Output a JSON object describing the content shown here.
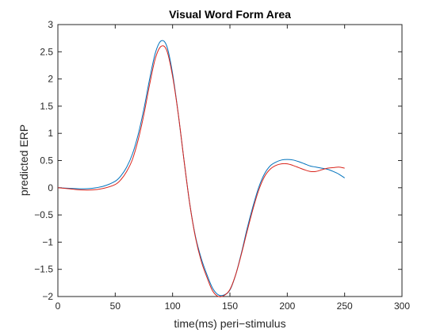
{
  "chart_data": {
    "type": "line",
    "title": "Visual Word Form Area",
    "xlabel": "time(ms) peri−stimulus",
    "ylabel": "predicted ERP",
    "xlim": [
      0,
      300
    ],
    "ylim": [
      -2,
      3
    ],
    "xticks": [
      0,
      50,
      100,
      150,
      200,
      250,
      300
    ],
    "yticks": [
      -2,
      -1.5,
      -1,
      -0.5,
      0,
      0.5,
      1,
      1.5,
      2,
      2.5,
      3
    ],
    "xtick_labels": [
      "0",
      "50",
      "100",
      "150",
      "200",
      "250",
      "300"
    ],
    "ytick_labels": [
      "−2",
      "−1.5",
      "−1",
      "−0.5",
      "0",
      "0.5",
      "1",
      "1.5",
      "2",
      "2.5",
      "3"
    ],
    "grid": false,
    "legend": "none",
    "series": [
      {
        "name": "series 1",
        "color": "#0072bd",
        "x": [
          0,
          10,
          20,
          30,
          40,
          50,
          55,
          60,
          65,
          70,
          75,
          80,
          85,
          90,
          95,
          100,
          105,
          110,
          115,
          120,
          125,
          130,
          135,
          140,
          145,
          150,
          155,
          160,
          165,
          170,
          175,
          180,
          185,
          190,
          195,
          200,
          205,
          210,
          215,
          220,
          225,
          230,
          235,
          240,
          245,
          250
        ],
        "y": [
          0.0,
          -0.01,
          -0.02,
          -0.01,
          0.03,
          0.12,
          0.22,
          0.38,
          0.62,
          0.98,
          1.45,
          2.0,
          2.48,
          2.7,
          2.6,
          2.1,
          1.35,
          0.5,
          -0.3,
          -0.9,
          -1.3,
          -1.6,
          -1.85,
          -1.97,
          -1.97,
          -1.88,
          -1.6,
          -1.2,
          -0.75,
          -0.35,
          0.0,
          0.25,
          0.4,
          0.47,
          0.51,
          0.52,
          0.51,
          0.48,
          0.44,
          0.4,
          0.38,
          0.36,
          0.34,
          0.3,
          0.25,
          0.18
        ]
      },
      {
        "name": "series 2",
        "color": "#d9241b",
        "x": [
          0,
          10,
          20,
          30,
          40,
          50,
          55,
          60,
          65,
          70,
          75,
          80,
          85,
          90,
          95,
          100,
          105,
          110,
          115,
          120,
          125,
          130,
          135,
          140,
          145,
          150,
          155,
          160,
          165,
          170,
          175,
          180,
          185,
          190,
          195,
          200,
          205,
          210,
          215,
          220,
          225,
          230,
          235,
          240,
          245,
          250
        ],
        "y": [
          0.0,
          -0.02,
          -0.04,
          -0.04,
          -0.01,
          0.06,
          0.15,
          0.3,
          0.52,
          0.88,
          1.35,
          1.9,
          2.38,
          2.6,
          2.52,
          2.05,
          1.35,
          0.5,
          -0.3,
          -0.92,
          -1.35,
          -1.65,
          -1.9,
          -2.0,
          -1.98,
          -1.87,
          -1.6,
          -1.22,
          -0.8,
          -0.4,
          -0.05,
          0.2,
          0.34,
          0.41,
          0.44,
          0.44,
          0.41,
          0.37,
          0.33,
          0.3,
          0.3,
          0.33,
          0.36,
          0.37,
          0.38,
          0.36
        ]
      }
    ]
  }
}
